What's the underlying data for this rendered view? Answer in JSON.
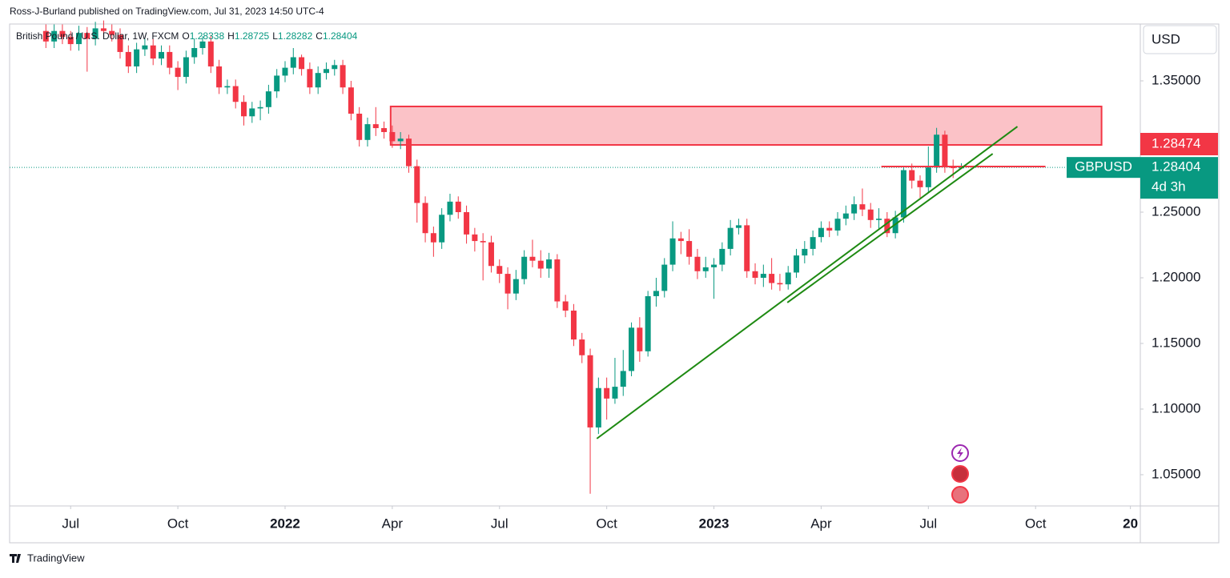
{
  "header": {
    "publisher": "Ross-J-Burland published on TradingView.com, Jul 31, 2023 14:50 UTC-4"
  },
  "footer": {
    "brand": "TradingView"
  },
  "chart_data": {
    "type": "candlestick",
    "title": "British Pound / U.S. Dollar, 1W, FXCM",
    "ohlc_labels": [
      "O",
      "H",
      "L",
      "C"
    ],
    "currency": "USD",
    "symbol": "GBPUSD",
    "countdown": "4d 3h",
    "up_color": "#089981",
    "down_color": "#f23645",
    "x": [
      -3,
      -2,
      -1,
      0,
      1,
      2,
      3,
      4,
      5,
      6,
      7,
      8,
      9,
      10,
      11,
      12,
      13,
      14,
      15,
      16,
      17,
      18,
      19,
      20,
      21,
      22,
      23,
      24,
      25,
      26,
      27,
      28,
      29,
      30,
      31,
      32,
      33,
      34,
      35,
      36,
      37,
      38,
      39,
      40,
      41,
      42,
      43,
      44,
      45,
      46,
      47,
      48,
      49,
      50,
      51,
      52,
      53,
      54,
      55,
      56,
      57,
      58,
      59,
      60,
      61,
      62,
      63,
      64,
      65,
      66,
      67,
      68,
      69,
      70,
      71,
      72,
      73,
      74,
      75,
      76,
      77,
      78,
      79,
      80,
      81,
      82,
      83,
      84,
      85,
      86,
      87,
      88,
      89,
      90,
      91,
      92,
      93,
      94,
      95,
      96,
      97,
      98,
      99,
      100,
      101,
      102,
      103,
      104,
      105,
      106,
      107,
      108
    ],
    "open": [
      1.388,
      1.38,
      1.388,
      1.3835,
      1.378,
      1.3865,
      1.382,
      1.39,
      1.388,
      1.385,
      1.372,
      1.361,
      1.374,
      1.377,
      1.367,
      1.372,
      1.36,
      1.353,
      1.368,
      1.375,
      1.38,
      1.361,
      1.345,
      1.346,
      1.334,
      1.323,
      1.329,
      1.33,
      1.342,
      1.354,
      1.36,
      1.368,
      1.359,
      1.345,
      1.356,
      1.359,
      1.362,
      1.345,
      1.325,
      1.305,
      1.317,
      1.314,
      1.311,
      1.304,
      1.306,
      1.285,
      1.257,
      1.234,
      1.227,
      1.248,
      1.258,
      1.25,
      1.233,
      1.228,
      1.227,
      1.209,
      1.203,
      1.188,
      1.199,
      1.216,
      1.213,
      1.207,
      1.214,
      1.182,
      1.175,
      1.153,
      1.141,
      1.086,
      1.116,
      1.108,
      1.117,
      1.129,
      1.162,
      1.144,
      1.186,
      1.19,
      1.21,
      1.23,
      1.228,
      1.216,
      1.205,
      1.208,
      1.21,
      1.222,
      1.238,
      1.24,
      1.205,
      1.2,
      1.203,
      1.196,
      1.195,
      1.204,
      1.217,
      1.222,
      1.231,
      1.238,
      1.236,
      1.245,
      1.249,
      1.256,
      1.252,
      1.244,
      1.245,
      1.234,
      1.246,
      1.282,
      1.274,
      1.269,
      1.284,
      1.309,
      1.285,
      1.28338
    ],
    "high": [
      1.393,
      1.393,
      1.393,
      1.388,
      1.392,
      1.391,
      1.395,
      1.396,
      1.393,
      1.39,
      1.377,
      1.379,
      1.382,
      1.382,
      1.377,
      1.377,
      1.365,
      1.373,
      1.382,
      1.384,
      1.385,
      1.366,
      1.351,
      1.351,
      1.339,
      1.334,
      1.335,
      1.347,
      1.359,
      1.365,
      1.375,
      1.37,
      1.364,
      1.361,
      1.364,
      1.366,
      1.366,
      1.35,
      1.33,
      1.322,
      1.33,
      1.319,
      1.316,
      1.311,
      1.309,
      1.29,
      1.262,
      1.239,
      1.253,
      1.264,
      1.262,
      1.255,
      1.238,
      1.234,
      1.232,
      1.214,
      1.208,
      1.206,
      1.221,
      1.229,
      1.221,
      1.219,
      1.218,
      1.187,
      1.18,
      1.158,
      1.146,
      1.124,
      1.124,
      1.139,
      1.145,
      1.166,
      1.17,
      1.19,
      1.2,
      1.215,
      1.243,
      1.235,
      1.237,
      1.222,
      1.216,
      1.215,
      1.227,
      1.244,
      1.245,
      1.245,
      1.211,
      1.21,
      1.215,
      1.203,
      1.209,
      1.222,
      1.228,
      1.236,
      1.243,
      1.243,
      1.25,
      1.255,
      1.262,
      1.268,
      1.257,
      1.253,
      1.25,
      1.251,
      1.285,
      1.287,
      1.278,
      1.3,
      1.3142,
      1.312,
      1.29,
      1.28725
    ],
    "low": [
      1.375,
      1.375,
      1.378,
      1.373,
      1.373,
      1.357,
      1.377,
      1.383,
      1.38,
      1.367,
      1.356,
      1.356,
      1.369,
      1.362,
      1.362,
      1.355,
      1.343,
      1.348,
      1.363,
      1.37,
      1.356,
      1.34,
      1.34,
      1.329,
      1.316,
      1.318,
      1.32,
      1.325,
      1.337,
      1.349,
      1.355,
      1.354,
      1.34,
      1.34,
      1.351,
      1.354,
      1.34,
      1.32,
      1.3,
      1.3,
      1.308,
      1.306,
      1.299,
      1.298,
      1.28,
      1.242,
      1.227,
      1.216,
      1.222,
      1.243,
      1.245,
      1.226,
      1.22,
      1.198,
      1.204,
      1.196,
      1.176,
      1.183,
      1.195,
      1.208,
      1.2,
      1.2,
      1.177,
      1.17,
      1.148,
      1.135,
      1.0355,
      1.081,
      1.092,
      1.104,
      1.11,
      1.125,
      1.136,
      1.14,
      1.178,
      1.185,
      1.205,
      1.218,
      1.21,
      1.199,
      1.2,
      1.184,
      1.205,
      1.217,
      1.233,
      1.2,
      1.195,
      1.193,
      1.191,
      1.19,
      1.191,
      1.2,
      1.211,
      1.217,
      1.227,
      1.231,
      1.232,
      1.24,
      1.244,
      1.247,
      1.238,
      1.237,
      1.231,
      1.23,
      1.242,
      1.268,
      1.261,
      1.265,
      1.28,
      1.28,
      1.276,
      1.28282
    ],
    "close": [
      1.38,
      1.388,
      1.3835,
      1.378,
      1.3865,
      1.382,
      1.39,
      1.388,
      1.385,
      1.372,
      1.361,
      1.374,
      1.377,
      1.367,
      1.372,
      1.36,
      1.353,
      1.368,
      1.375,
      1.38,
      1.361,
      1.345,
      1.346,
      1.334,
      1.323,
      1.329,
      1.33,
      1.342,
      1.354,
      1.36,
      1.368,
      1.359,
      1.345,
      1.356,
      1.359,
      1.362,
      1.345,
      1.325,
      1.305,
      1.317,
      1.314,
      1.311,
      1.304,
      1.306,
      1.285,
      1.257,
      1.234,
      1.227,
      1.248,
      1.258,
      1.25,
      1.233,
      1.228,
      1.227,
      1.209,
      1.203,
      1.188,
      1.199,
      1.216,
      1.213,
      1.207,
      1.214,
      1.182,
      1.175,
      1.153,
      1.141,
      1.086,
      1.116,
      1.108,
      1.117,
      1.129,
      1.162,
      1.144,
      1.186,
      1.19,
      1.21,
      1.23,
      1.228,
      1.216,
      1.205,
      1.208,
      1.21,
      1.222,
      1.238,
      1.24,
      1.205,
      1.2,
      1.203,
      1.196,
      1.195,
      1.204,
      1.217,
      1.222,
      1.231,
      1.238,
      1.236,
      1.245,
      1.249,
      1.256,
      1.252,
      1.244,
      1.245,
      1.234,
      1.246,
      1.282,
      1.274,
      1.269,
      1.284,
      1.309,
      1.285,
      1.2835,
      1.28404
    ],
    "xlim": [
      -7.4,
      129.7
    ],
    "ylim": [
      1.0262,
      1.3933
    ],
    "xticks": [
      {
        "value": 0,
        "label": "Jul"
      },
      {
        "value": 13,
        "label": "Oct"
      },
      {
        "value": 26,
        "label": "2022"
      },
      {
        "value": 39,
        "label": "Apr"
      },
      {
        "value": 52,
        "label": "Jul"
      },
      {
        "value": 65,
        "label": "Oct"
      },
      {
        "value": 78,
        "label": "2023"
      },
      {
        "value": 91,
        "label": "Apr"
      },
      {
        "value": 104,
        "label": "Jul"
      },
      {
        "value": 117,
        "label": "Oct"
      },
      {
        "value": 128.5,
        "label": "20"
      }
    ],
    "yticks": [
      {
        "value": 1.05,
        "label": "1.05000"
      },
      {
        "value": 1.1,
        "label": "1.10000"
      },
      {
        "value": 1.15,
        "label": "1.15000"
      },
      {
        "value": 1.2,
        "label": "1.20000"
      },
      {
        "value": 1.25,
        "label": "1.25000"
      },
      {
        "value": 1.35,
        "label": "1.35000"
      }
    ],
    "zone": {
      "x": [
        38.8,
        125
      ],
      "y": [
        1.3012,
        1.3305
      ],
      "color": "#f23645"
    },
    "trendlines": [
      {
        "x": [
          63.8,
          114.8
        ],
        "y": [
          1.0775,
          1.3152
        ],
        "color": "#1e8a12"
      },
      {
        "x": [
          86.9,
          111.8
        ],
        "y": [
          1.1811,
          1.2945
        ],
        "color": "#1e8a12"
      }
    ],
    "level": {
      "value": 1.28474,
      "x": [
        98.3,
        118.2
      ],
      "color": "#f23645"
    }
  }
}
